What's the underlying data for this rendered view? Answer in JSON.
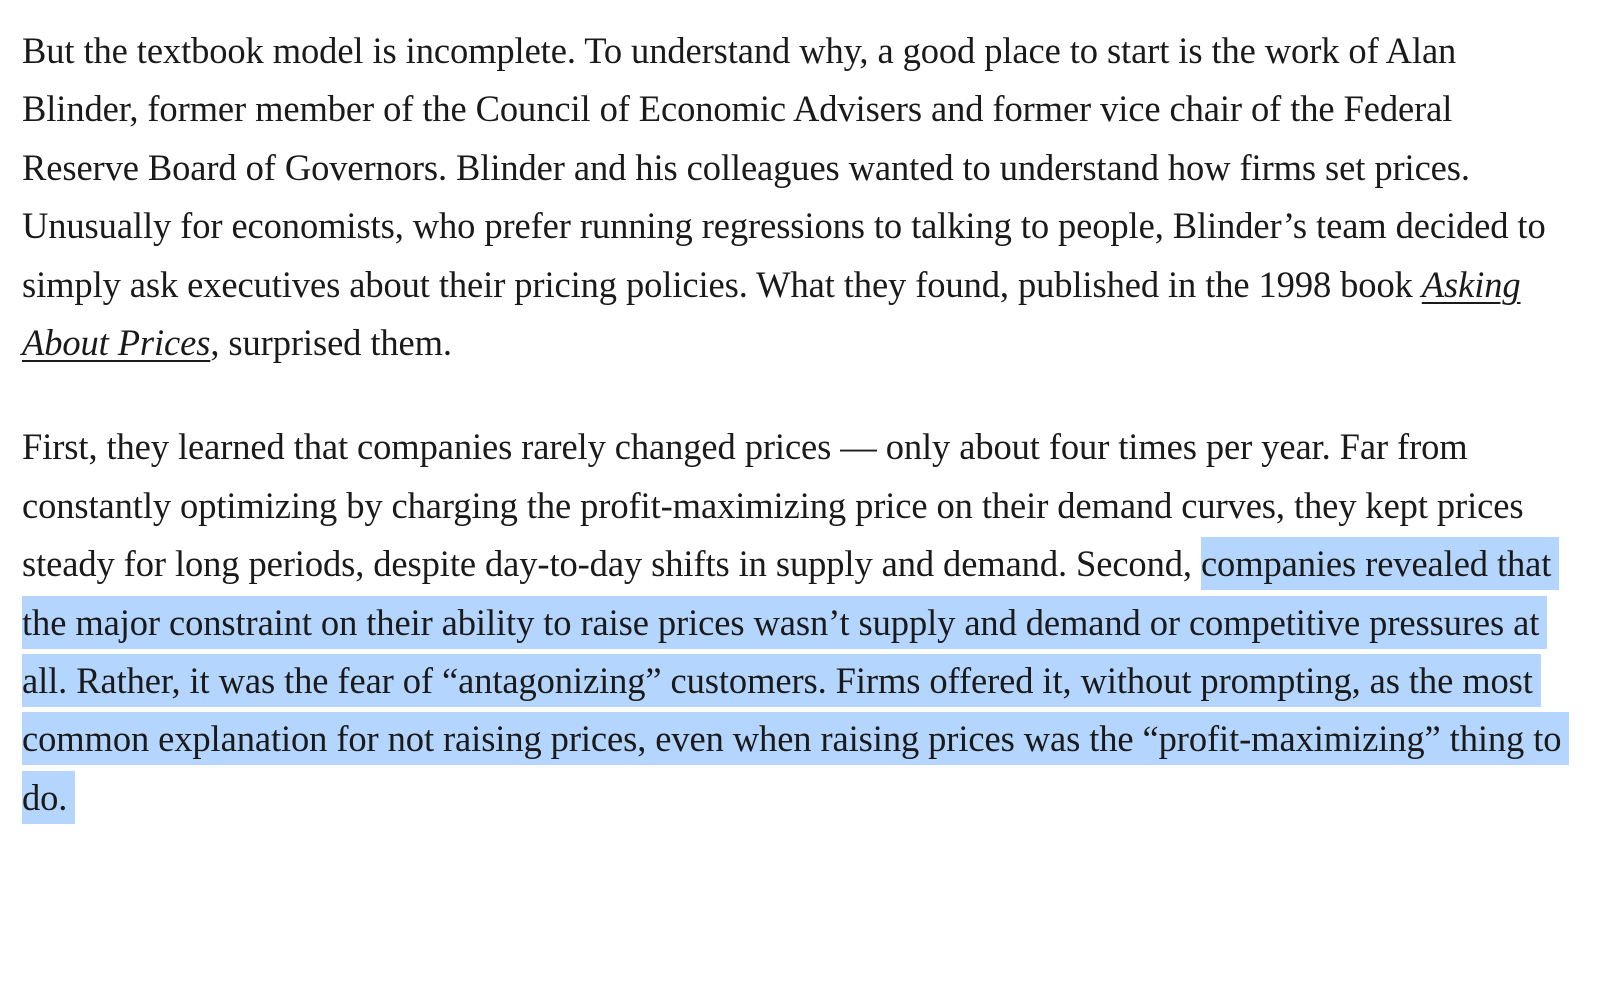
{
  "article": {
    "paragraph_1": {
      "text_before_link": "But the textbook model is incomplete. To understand why, a good place to start is the work of Alan Blinder, former member of the Council of Economic Advisers and former vice chair of the Federal Reserve Board of Governors. Blinder and his colleagues wanted to understand how firms set prices. Unusually for economists, who prefer running regressions to talking to people, Blinder’s team decided to simply ask executives about their pricing policies. What they found, published in the 1998 book ",
      "book_link": "Asking About Prices",
      "text_after_link": ", surprised them."
    },
    "paragraph_2": {
      "text_before_selection": "First, they learned that companies rarely changed prices — only about four times per year. Far from constantly optimizing by charging the profit-maximizing price on their demand curves, they kept prices steady for long periods, despite day-to-day shifts in supply and demand. Second, ",
      "selected_text": "companies revealed that the major constraint on their ability to raise prices wasn’t supply and demand or competitive pressures at all. Rather, it was the fear of “antagonizing” customers. Firms offered it, without prompting, as the most common explanation for not raising prices, even when raising prices was the “profit-maximizing” thing to do."
    }
  },
  "colors": {
    "text": "#1a1a1a",
    "selection_highlight": "#b4d5fe",
    "background": "#ffffff"
  }
}
